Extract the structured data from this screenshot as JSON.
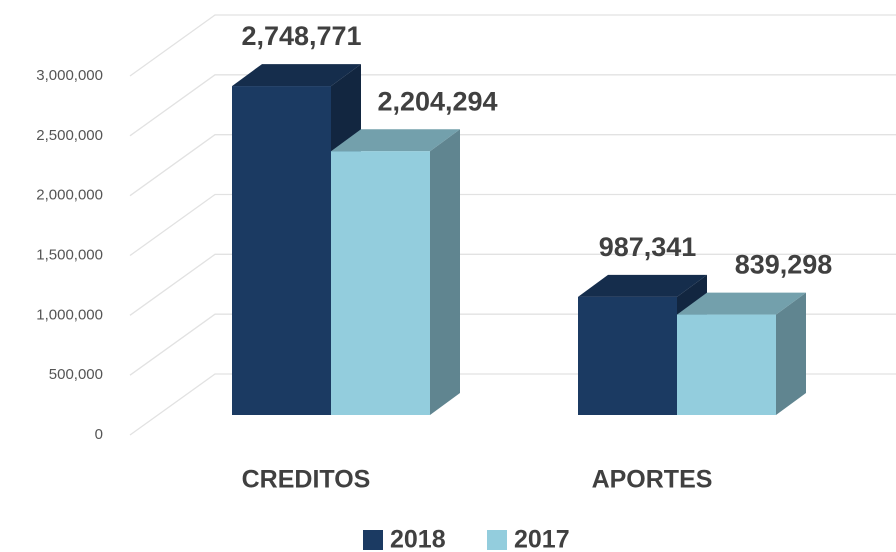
{
  "chart_data": {
    "type": "bar3d",
    "categories": [
      "CREDITOS",
      "APORTES"
    ],
    "series": [
      {
        "name": "2018",
        "color": "#1b3a62",
        "values": [
          2748771,
          987341
        ],
        "value_labels": [
          "2,748,771",
          "987,341"
        ]
      },
      {
        "name": "2017",
        "color": "#93cddd",
        "values": [
          2204294,
          839298
        ],
        "value_labels": [
          "2,204,294",
          "839,298"
        ]
      }
    ],
    "ylim": [
      0,
      3000000
    ],
    "yticks": [
      0,
      {
        "value": 500000,
        "label": "500,000"
      },
      {
        "value": 1000000,
        "label": "1,000,000"
      },
      {
        "value": 1500000,
        "label": "1,500,000"
      },
      {
        "value": 2000000,
        "label": "2,000,000"
      },
      {
        "value": 2500000,
        "label": "2,500,000"
      },
      {
        "value": 3000000,
        "label": "3,000,000"
      }
    ],
    "grid": true,
    "legend": "bottom"
  }
}
